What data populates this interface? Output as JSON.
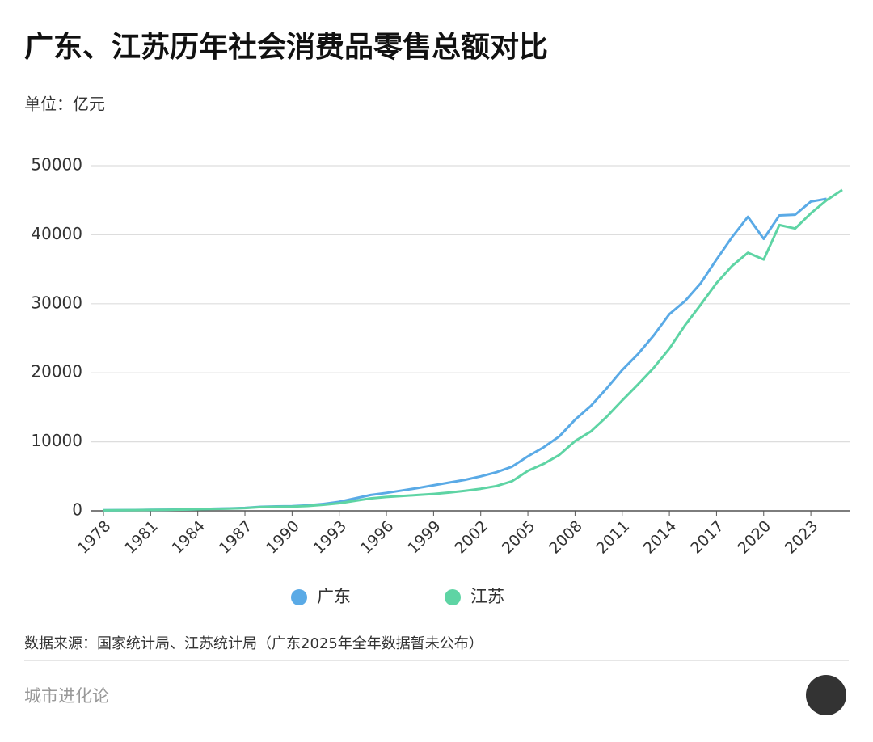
{
  "chart_data": {
    "type": "line",
    "title": "广东、江苏历年社会消费品零售总额对比",
    "subtitle": "单位：亿元",
    "x": [
      1978,
      1979,
      1980,
      1981,
      1982,
      1983,
      1984,
      1985,
      1986,
      1987,
      1988,
      1989,
      1990,
      1991,
      1992,
      1993,
      1994,
      1995,
      1996,
      1997,
      1998,
      1999,
      2000,
      2001,
      2002,
      2003,
      2004,
      2005,
      2006,
      2007,
      2008,
      2009,
      2010,
      2011,
      2012,
      2013,
      2014,
      2015,
      2016,
      2017,
      2018,
      2019,
      2020,
      2021,
      2022,
      2023,
      2024,
      2025
    ],
    "xlim": [
      1978,
      2025
    ],
    "xticks": [
      1978,
      1981,
      1984,
      1987,
      1990,
      1993,
      1996,
      1999,
      2002,
      2005,
      2008,
      2011,
      2014,
      2017,
      2020,
      2023
    ],
    "ylim": [
      0,
      50000
    ],
    "yticks": [
      0,
      10000,
      20000,
      30000,
      40000,
      50000
    ],
    "grid": true,
    "legend": "bottom",
    "series": [
      {
        "name": "广东",
        "color": "#5aaae6",
        "values": [
          80,
          100,
          120,
          140,
          160,
          190,
          230,
          300,
          350,
          420,
          580,
          640,
          680,
          800,
          1000,
          1300,
          1800,
          2300,
          2600,
          2950,
          3300,
          3700,
          4100,
          4500,
          5000,
          5600,
          6400,
          7900,
          9200,
          10800,
          13200,
          15200,
          17700,
          20400,
          22700,
          25400,
          28500,
          30400,
          33000,
          36400,
          39700,
          42600,
          39400,
          42800,
          42900,
          44800,
          45200,
          null
        ]
      },
      {
        "name": "江苏",
        "color": "#5ed4a4",
        "values": [
          70,
          90,
          110,
          130,
          150,
          180,
          220,
          280,
          330,
          400,
          540,
          590,
          610,
          700,
          880,
          1100,
          1450,
          1800,
          2000,
          2150,
          2300,
          2450,
          2650,
          2900,
          3200,
          3600,
          4300,
          5800,
          6800,
          8100,
          10100,
          11500,
          13600,
          16000,
          18300,
          20700,
          23500,
          26900,
          29900,
          33000,
          35500,
          37400,
          36400,
          41400,
          40900,
          43100,
          45000,
          46500
        ]
      }
    ]
  },
  "source": "数据来源：国家统计局、江苏统计局（广东2025年全年数据暂未公布）",
  "footer": "城市进化论"
}
